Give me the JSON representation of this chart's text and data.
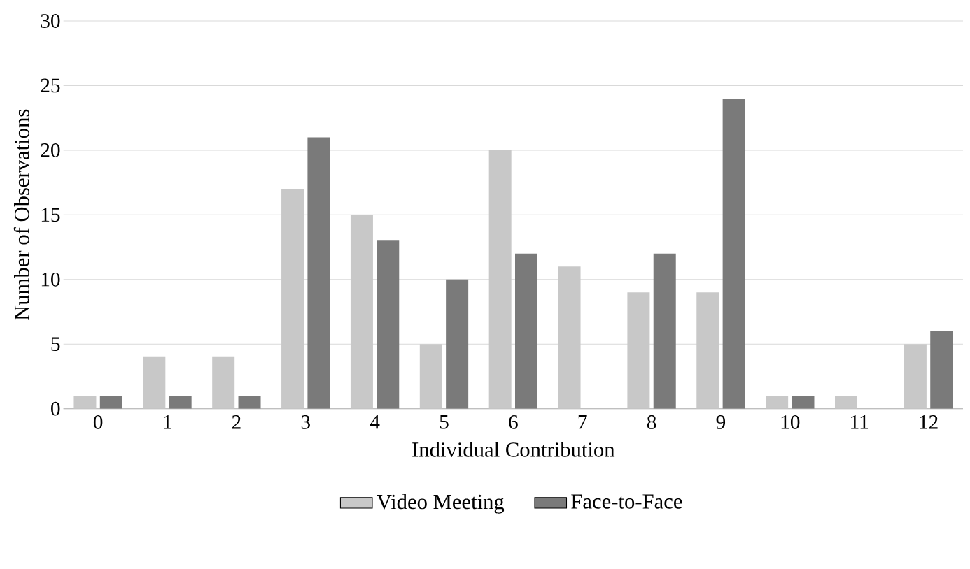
{
  "chart_data": {
    "type": "bar",
    "xlabel": "Individual Contribution",
    "ylabel": "Number of Observations",
    "categories": [
      "0",
      "1",
      "2",
      "3",
      "4",
      "5",
      "6",
      "7",
      "8",
      "9",
      "10",
      "11",
      "12"
    ],
    "series": [
      {
        "name": "Video Meeting",
        "color": "#c8c8c8",
        "values": [
          1,
          4,
          4,
          17,
          15,
          5,
          20,
          11,
          9,
          9,
          1,
          1,
          5
        ]
      },
      {
        "name": "Face-to-Face",
        "color": "#7a7a7a",
        "values": [
          1,
          1,
          1,
          21,
          13,
          10,
          12,
          0,
          12,
          24,
          1,
          0,
          6
        ]
      }
    ],
    "ylim": [
      0,
      30
    ],
    "yticks": [
      0,
      5,
      10,
      15,
      20,
      25,
      30
    ],
    "grid": "y",
    "legend": "bottom"
  }
}
